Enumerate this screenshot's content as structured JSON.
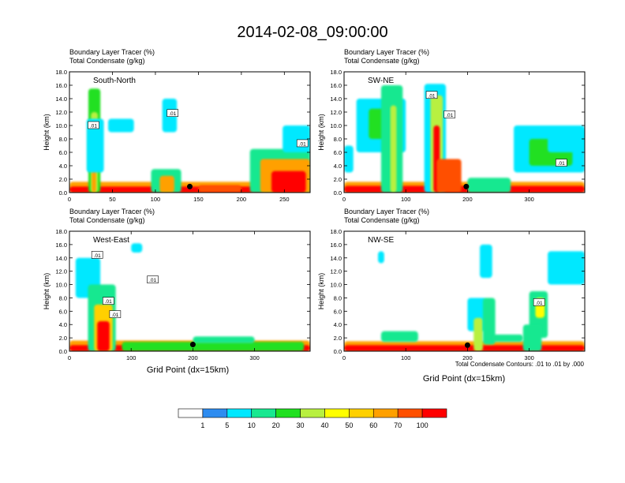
{
  "title": "2014-02-08_09:00:00",
  "panel_top_label_1": "Boundary Layer Tracer   (%)",
  "panel_top_label_2": "Total Condensate   (g/kg)",
  "ylabel": "Height (km)",
  "xlabel": "Grid Point (dx=15km)",
  "contour_note": "Total Condensate Contours: .01 to .01 by .000",
  "colorbar": {
    "colors": [
      "#ffffff",
      "#2e8cf0",
      "#00e8ff",
      "#18e890",
      "#20e020",
      "#b8f040",
      "#ffff00",
      "#ffd000",
      "#ffa000",
      "#ff5000",
      "#ff0000"
    ],
    "labels": [
      "1",
      "5",
      "10",
      "20",
      "30",
      "40",
      "50",
      "60",
      "70",
      "100"
    ]
  },
  "chart_data": [
    {
      "type": "heatmap",
      "name": "South-North",
      "xlim": [
        0,
        280
      ],
      "xticks": [
        0,
        50,
        100,
        150,
        200,
        250
      ],
      "ylim": [
        0,
        18
      ],
      "yticks": [
        "0.0",
        "2.0",
        "4.0",
        "6.0",
        "8.0",
        "10.0",
        "12.0",
        "14.0",
        "16.0",
        "18.0"
      ],
      "contour_labels": [
        {
          "text": ".01",
          "x": 28,
          "y": 10.0
        },
        {
          "text": ".01",
          "x": 120,
          "y": 11.8
        },
        {
          "text": ".01",
          "x": 271,
          "y": 7.3
        }
      ],
      "marker": {
        "x": 140,
        "y": 0.9
      }
    },
    {
      "type": "heatmap",
      "name": "SW-NE",
      "xlim": [
        0,
        390
      ],
      "xticks": [
        0,
        100,
        200,
        300
      ],
      "ylim": [
        0,
        18
      ],
      "yticks": [
        "0.0",
        "2.0",
        "4.0",
        "6.0",
        "8.0",
        "10.0",
        "12.0",
        "14.0",
        "16.0",
        "18.0"
      ],
      "contour_labels": [
        {
          "text": ".01",
          "x": 142,
          "y": 14.5
        },
        {
          "text": ".01",
          "x": 171,
          "y": 11.6
        },
        {
          "text": ".01",
          "x": 352,
          "y": 4.4
        }
      ],
      "marker": {
        "x": 198,
        "y": 0.9
      }
    },
    {
      "type": "heatmap",
      "name": "West-East",
      "xlim": [
        0,
        390
      ],
      "xticks": [
        0,
        100,
        200,
        300
      ],
      "ylim": [
        0,
        18
      ],
      "yticks": [
        "0.0",
        "2.0",
        "4.0",
        "6.0",
        "8.0",
        "10.0",
        "12.0",
        "14.0",
        "16.0",
        "18.0"
      ],
      "contour_labels": [
        {
          "text": ".01",
          "x": 45,
          "y": 14.4
        },
        {
          "text": ".01",
          "x": 135,
          "y": 10.7
        },
        {
          "text": ".01",
          "x": 63,
          "y": 7.5
        },
        {
          "text": ".01",
          "x": 74,
          "y": 5.5
        }
      ],
      "marker": {
        "x": 200,
        "y": 1.0
      }
    },
    {
      "type": "heatmap",
      "name": "NW-SE",
      "xlim": [
        0,
        390
      ],
      "xticks": [
        0,
        100,
        200,
        300
      ],
      "ylim": [
        0,
        18
      ],
      "yticks": [
        "0.0",
        "2.0",
        "4.0",
        "6.0",
        "8.0",
        "10.0",
        "12.0",
        "14.0",
        "16.0",
        "18.0"
      ],
      "contour_labels": [
        {
          "text": ".01",
          "x": 316,
          "y": 7.3
        }
      ],
      "marker": {
        "x": 200,
        "y": 0.9
      }
    }
  ]
}
